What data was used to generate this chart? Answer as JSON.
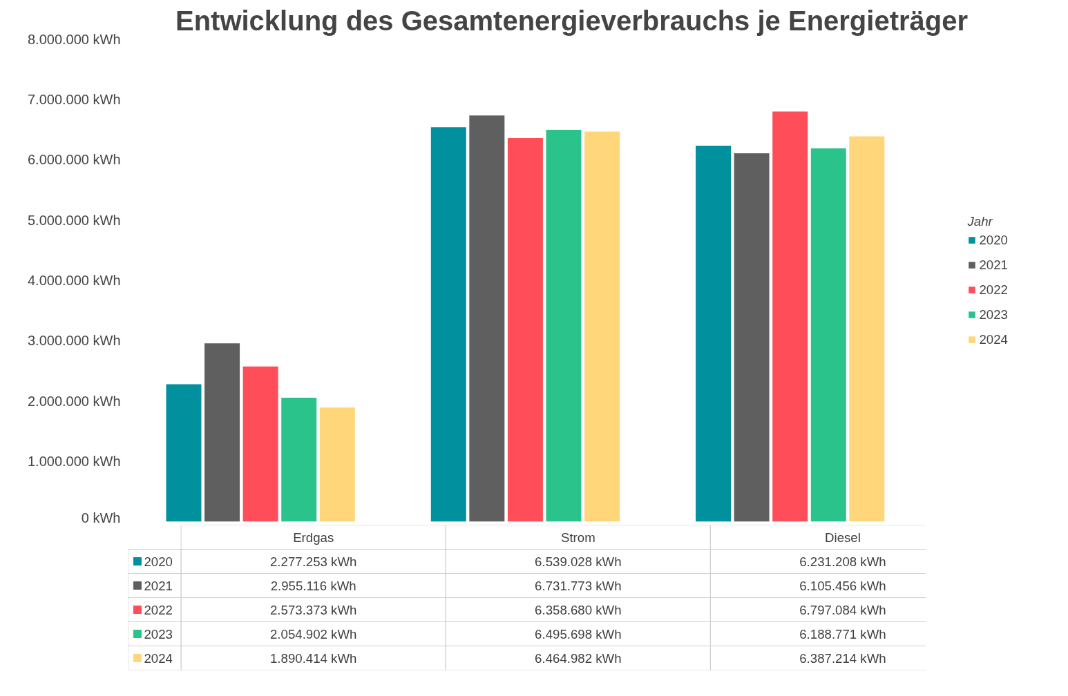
{
  "chart_data": {
    "type": "bar",
    "title": "Entwicklung des Gesamtenergieverbrauchs je Energieträger",
    "legend_title": "Jahr",
    "legend": "right",
    "grid": false,
    "categories": [
      "Erdgas",
      "Strom",
      "Diesel"
    ],
    "ylim": [
      0,
      8000000
    ],
    "yticks": [
      {
        "value": 0,
        "label": "0 kWh"
      },
      {
        "value": 1000000,
        "label": "1.000.000 kWh"
      },
      {
        "value": 2000000,
        "label": "2.000.000 kWh"
      },
      {
        "value": 3000000,
        "label": "3.000.000 kWh"
      },
      {
        "value": 4000000,
        "label": "4.000.000 kWh"
      },
      {
        "value": 5000000,
        "label": "5.000.000 kWh"
      },
      {
        "value": 6000000,
        "label": "6.000.000 kWh"
      },
      {
        "value": 7000000,
        "label": "7.000.000 kWh"
      },
      {
        "value": 8000000,
        "label": "8.000.000 kWh"
      }
    ],
    "series": [
      {
        "name": "2020",
        "color": "#00909e",
        "values": [
          2277253,
          6539028,
          6231208
        ],
        "value_labels": [
          "2.277.253 kWh",
          "6.539.028 kWh",
          "6.231.208 kWh"
        ]
      },
      {
        "name": "2021",
        "color": "#5f5f5f",
        "values": [
          2955116,
          6731773,
          6105456
        ],
        "value_labels": [
          "2.955.116 kWh",
          "6.731.773 kWh",
          "6.105.456 kWh"
        ]
      },
      {
        "name": "2022",
        "color": "#ff4d5a",
        "values": [
          2573373,
          6358680,
          6797084
        ],
        "value_labels": [
          "2.573.373 kWh",
          "6.358.680 kWh",
          "6.797.084 kWh"
        ]
      },
      {
        "name": "2023",
        "color": "#2ac38b",
        "values": [
          2054902,
          6495698,
          6188771
        ],
        "value_labels": [
          "2.054.902 kWh",
          "6.495.698 kWh",
          "6.188.771 kWh"
        ]
      },
      {
        "name": "2024",
        "color": "#ffd67a",
        "values": [
          1890414,
          6464982,
          6387214
        ],
        "value_labels": [
          "1.890.414 kWh",
          "6.464.982 kWh",
          "6.387.214 kWh"
        ]
      }
    ]
  }
}
